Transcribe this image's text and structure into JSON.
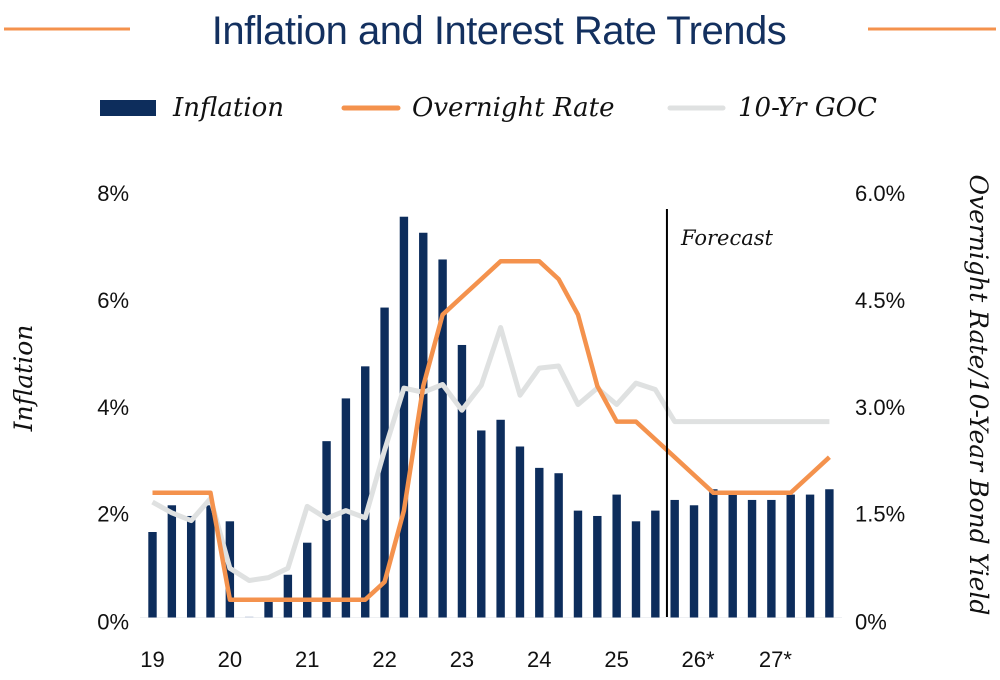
{
  "chart_data": {
    "type": "bar",
    "title": "Inflation and Interest Rate Trends",
    "colors": {
      "title": "#13305f",
      "inflation": "#0d2d5c",
      "overnight": "#f4924d",
      "goc": "#dfe1e1",
      "accent_rule": "#f4924d",
      "forecast_line": "#000000"
    },
    "legend": {
      "placement": "top",
      "entries": [
        {
          "name": "Inflation",
          "kind": "bar"
        },
        {
          "name": "Overnight Rate",
          "kind": "line"
        },
        {
          "name": "10-Yr GOC",
          "kind": "line"
        }
      ]
    },
    "xlabel": "",
    "x_tick_labels": [
      "19",
      "20",
      "21",
      "22",
      "23",
      "24",
      "25",
      "26*",
      "27*"
    ],
    "periods_per_label": 4,
    "ylabel_left": "Inflation",
    "ylabel_right": "Overnight Rate/10-Year Bond Yield",
    "ylim_left": [
      0,
      8
    ],
    "ylim_right": [
      0,
      6
    ],
    "yticks_left": [
      "0%",
      "2%",
      "4%",
      "6%",
      "8%"
    ],
    "yticks_right": [
      "0%",
      "1.5%",
      "3.0%",
      "4.5%",
      "6.0%"
    ],
    "forecast_start_index": 26.6,
    "forecast_label": "Forecast",
    "categories": [
      "2019Q1",
      "2019Q2",
      "2019Q3",
      "2019Q4",
      "2020Q1",
      "2020Q2",
      "2020Q3",
      "2020Q4",
      "2021Q1",
      "2021Q2",
      "2021Q3",
      "2021Q4",
      "2022Q1",
      "2022Q2",
      "2022Q3",
      "2022Q4",
      "2023Q1",
      "2023Q2",
      "2023Q3",
      "2023Q4",
      "2024Q1",
      "2024Q2",
      "2024Q3",
      "2024Q4",
      "2025Q1",
      "2025Q2",
      "2025Q3",
      "2025Q4",
      "2026Q1",
      "2026Q2",
      "2026Q3",
      "2026Q4",
      "2027Q1",
      "2027Q2",
      "2027Q3",
      "2027Q4"
    ],
    "series": [
      {
        "name": "Inflation",
        "axis": "left",
        "type": "bar",
        "values": [
          1.6,
          2.1,
          1.9,
          2.1,
          1.8,
          0.0,
          0.3,
          0.8,
          1.4,
          3.3,
          4.1,
          4.7,
          5.8,
          7.5,
          7.2,
          6.7,
          5.1,
          3.5,
          3.7,
          3.2,
          2.8,
          2.7,
          2.0,
          1.9,
          2.3,
          1.8,
          2.0,
          2.2,
          2.1,
          2.4,
          2.3,
          2.2,
          2.2,
          2.3,
          2.3,
          2.4
        ]
      },
      {
        "name": "Overnight Rate",
        "axis": "right",
        "type": "line",
        "values": [
          1.75,
          1.75,
          1.75,
          1.75,
          0.25,
          0.25,
          0.25,
          0.25,
          0.25,
          0.25,
          0.25,
          0.25,
          0.5,
          1.5,
          3.25,
          4.25,
          4.5,
          4.75,
          5.0,
          5.0,
          5.0,
          4.75,
          4.25,
          3.25,
          2.75,
          2.75,
          2.5,
          2.25,
          2.0,
          1.75,
          1.75,
          1.75,
          1.75,
          1.75,
          2.0,
          2.25
        ]
      },
      {
        "name": "10-Yr GOC",
        "axis": "right",
        "type": "line",
        "values": [
          1.62,
          1.47,
          1.36,
          1.67,
          0.69,
          0.52,
          0.56,
          0.69,
          1.56,
          1.39,
          1.5,
          1.4,
          2.35,
          3.22,
          3.16,
          3.27,
          2.91,
          3.26,
          4.07,
          3.12,
          3.5,
          3.53,
          2.99,
          3.22,
          2.99,
          3.29,
          3.2,
          2.75,
          2.75,
          2.75,
          2.75,
          2.75,
          2.75,
          2.75,
          2.75,
          2.75
        ]
      }
    ]
  }
}
